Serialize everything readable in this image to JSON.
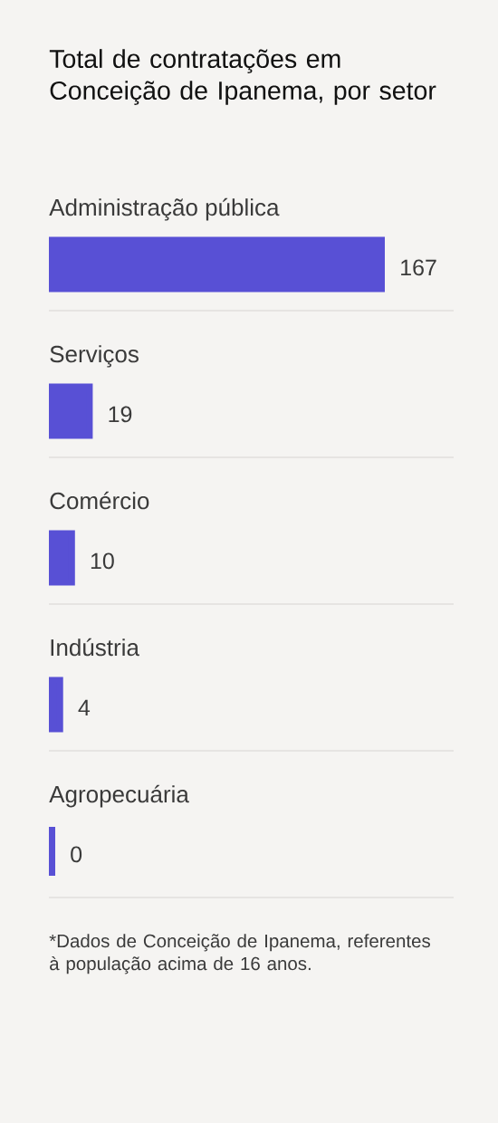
{
  "chart_data": {
    "type": "bar",
    "orientation": "horizontal",
    "title": "Total de contratações em Conceição de Ipanema, por setor",
    "categories": [
      "Administração pública",
      "Serviços",
      "Comércio",
      "Indústria",
      "Agropecuária"
    ],
    "values": [
      167,
      19,
      10,
      4,
      0
    ],
    "color": "#5850d5",
    "data_labels": true,
    "grid": "y",
    "tick_labels": "y",
    "annotations": [
      "*Dados de Conceição de Ipanema, referentes à população acima de 16 anos."
    ]
  }
}
